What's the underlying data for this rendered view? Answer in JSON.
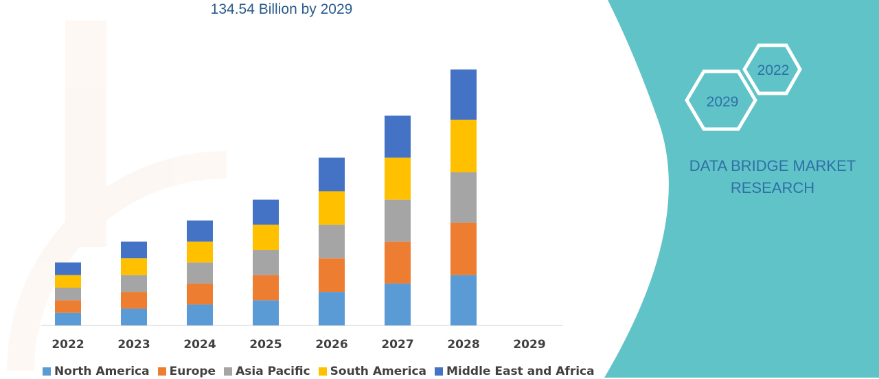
{
  "header": {
    "subtitle": "134.54 Billion by 2029"
  },
  "brand": {
    "line1": "DATA BRIDGE MARKET",
    "line2": "RESEARCH",
    "badge_year_a": "2029",
    "badge_year_b": "2022",
    "panel_color": "#5fc3c7"
  },
  "chart_data": {
    "type": "bar",
    "stacked": true,
    "categories": [
      "2022",
      "2023",
      "2024",
      "2025",
      "2026",
      "2027",
      "2028",
      "2029"
    ],
    "series": [
      {
        "name": "North America",
        "color": "#5b9bd5",
        "values": [
          3,
          4,
          5,
          6,
          8,
          10,
          12,
          null
        ]
      },
      {
        "name": "Europe",
        "color": "#ed7d31",
        "values": [
          3,
          4,
          5,
          6,
          8,
          10,
          12.5,
          null
        ]
      },
      {
        "name": "Asia Pacific",
        "color": "#a5a5a5",
        "values": [
          3,
          4,
          5,
          6,
          8,
          10,
          12,
          null
        ]
      },
      {
        "name": "South America",
        "color": "#ffc000",
        "values": [
          3,
          4,
          5,
          6,
          8,
          10,
          12.5,
          null
        ]
      },
      {
        "name": "Middle East and Africa",
        "color": "#4472c4",
        "values": [
          3,
          4,
          5,
          6,
          8,
          10,
          12,
          null
        ]
      }
    ],
    "legend_position": "bottom",
    "grid": false
  }
}
